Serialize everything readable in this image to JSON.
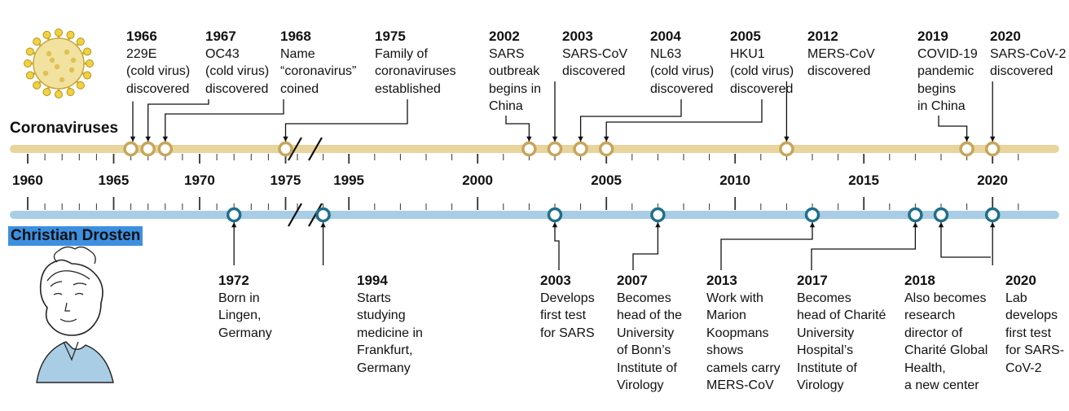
{
  "colors": {
    "corona_band": "#e8d49c",
    "corona_marker": "#c7a55a",
    "drosten_band": "#a9cde4",
    "drosten_marker": "#1f6f8b",
    "tick": "#333333",
    "label_highlight": "#3d8fe0"
  },
  "labels": {
    "coronaviruses": "Coronaviruses",
    "drosten": "Christian Drosten"
  },
  "axis_years": [
    "1960",
    "1965",
    "1970",
    "1975",
    "1995",
    "2000",
    "2005",
    "2010",
    "2015",
    "2020"
  ],
  "corona_events": [
    {
      "year": "1966",
      "lines": [
        "229E",
        "(cold virus)",
        "discovered"
      ]
    },
    {
      "year": "1967",
      "lines": [
        "OC43",
        "(cold virus)",
        "discovered"
      ]
    },
    {
      "year": "1968",
      "lines": [
        "Name",
        "“coronavirus”",
        "coined"
      ]
    },
    {
      "year": "1975",
      "lines": [
        "Family of",
        "coronaviruses",
        "established"
      ]
    },
    {
      "year": "2002",
      "lines": [
        "SARS",
        "outbreak",
        "begins in",
        "China"
      ]
    },
    {
      "year": "2003",
      "lines": [
        "SARS-CoV",
        "discovered"
      ]
    },
    {
      "year": "2004",
      "lines": [
        "NL63",
        "(cold virus)",
        "discovered"
      ]
    },
    {
      "year": "2005",
      "lines": [
        "HKU1",
        "(cold virus)",
        "discovered"
      ]
    },
    {
      "year": "2012",
      "lines": [
        "MERS-CoV",
        "discovered"
      ]
    },
    {
      "year": "2019",
      "lines": [
        "COVID-19",
        "pandemic",
        "begins",
        "in China"
      ]
    },
    {
      "year": "2020",
      "lines": [
        "SARS-CoV-2",
        "discovered"
      ]
    }
  ],
  "drosten_events": [
    {
      "year": "1972",
      "lines": [
        "Born in",
        "Lingen,",
        "Germany"
      ]
    },
    {
      "year": "1994",
      "lines": [
        "Starts",
        "studying",
        "medicine in",
        "Frankfurt,",
        "Germany"
      ]
    },
    {
      "year": "2003",
      "lines": [
        "Develops",
        "first test",
        "for SARS"
      ]
    },
    {
      "year": "2007",
      "lines": [
        "Becomes",
        "head of the",
        "University",
        "of Bonn’s",
        "Institute of",
        "Virology"
      ]
    },
    {
      "year": "2013",
      "lines": [
        "Work with",
        "Marion",
        "Koopmans",
        "shows",
        "camels carry",
        "MERS-CoV"
      ]
    },
    {
      "year": "2017",
      "lines": [
        "Becomes",
        "head of Charité",
        "University",
        "Hospital’s",
        "Institute of",
        "Virology"
      ]
    },
    {
      "year": "2018",
      "lines": [
        "Also becomes",
        "research",
        "director of",
        "Charité Global",
        "Health,",
        "a new center"
      ]
    },
    {
      "year": "2020",
      "lines": [
        "Lab",
        "develops",
        "first test",
        "for SARS-",
        "CoV-2"
      ]
    }
  ]
}
